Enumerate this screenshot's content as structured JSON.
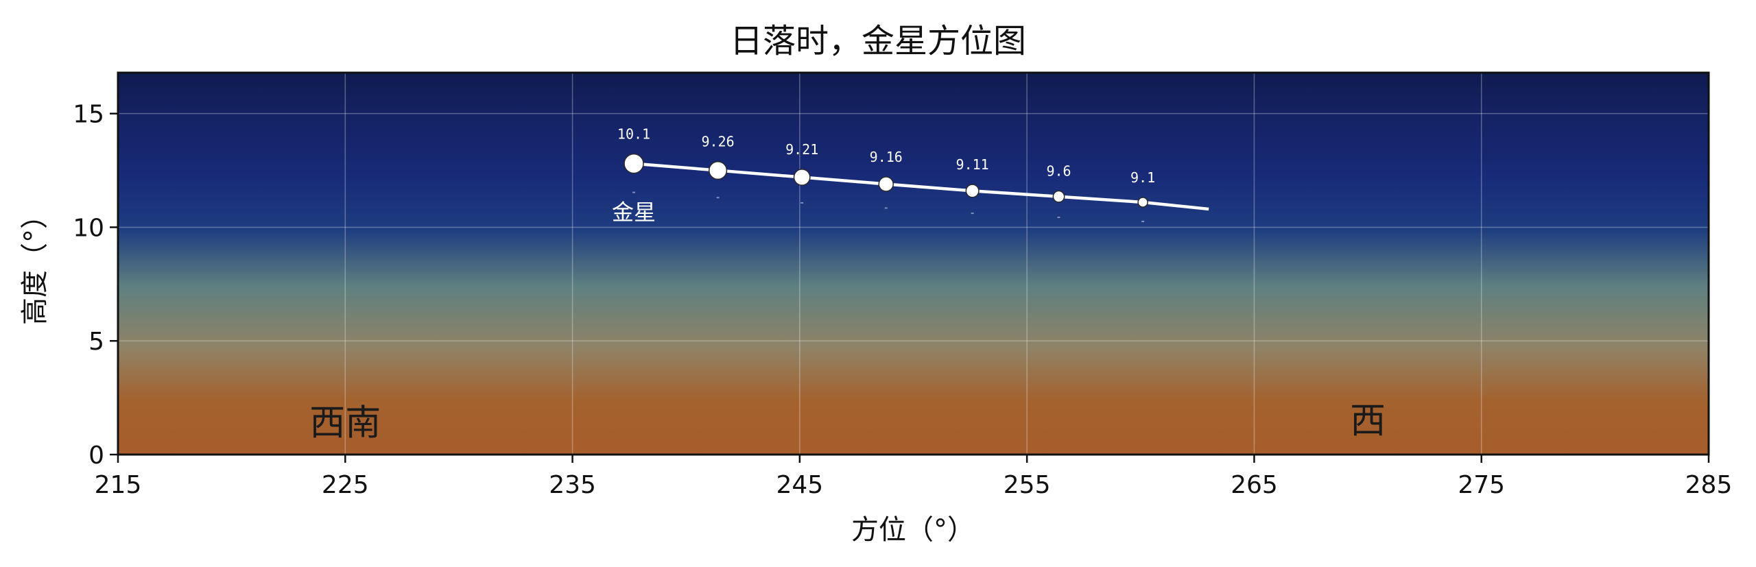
{
  "chart_data": {
    "type": "line",
    "title": "日落时，金星方位图",
    "xlabel": "方位（°）",
    "ylabel": "高度（°）",
    "xlim": [
      215,
      285
    ],
    "ylim": [
      0,
      16.8
    ],
    "xticks": [
      "215",
      "225",
      "235",
      "245",
      "255",
      "265",
      "275",
      "285"
    ],
    "yticks": [
      "0",
      "5",
      "10",
      "15"
    ],
    "grid": true,
    "planet_label": "金星",
    "direction_labels": [
      {
        "text": "西南",
        "x": 225,
        "y": 1.4
      },
      {
        "text": "西",
        "x": 270,
        "y": 1.5
      }
    ],
    "series": [
      {
        "name": "金星",
        "dates": [
          "10.1",
          "9.26",
          "9.21",
          "9.16",
          "9.11",
          "9.6",
          "9.1"
        ],
        "x": [
          237.7,
          241.4,
          245.1,
          248.8,
          252.6,
          256.4,
          260.1
        ],
        "y": [
          12.8,
          12.5,
          12.2,
          11.9,
          11.6,
          11.35,
          11.1
        ],
        "line_end": {
          "x": 263.0,
          "y": 10.8
        }
      }
    ],
    "colors": {
      "sky_top": "#0f1b4f",
      "sky_mid": "#182a78",
      "sky_teal": "#5f8080",
      "sky_tan": "#8f8366",
      "sky_bottom": "#a65d2b",
      "track": "#ffffff"
    }
  }
}
